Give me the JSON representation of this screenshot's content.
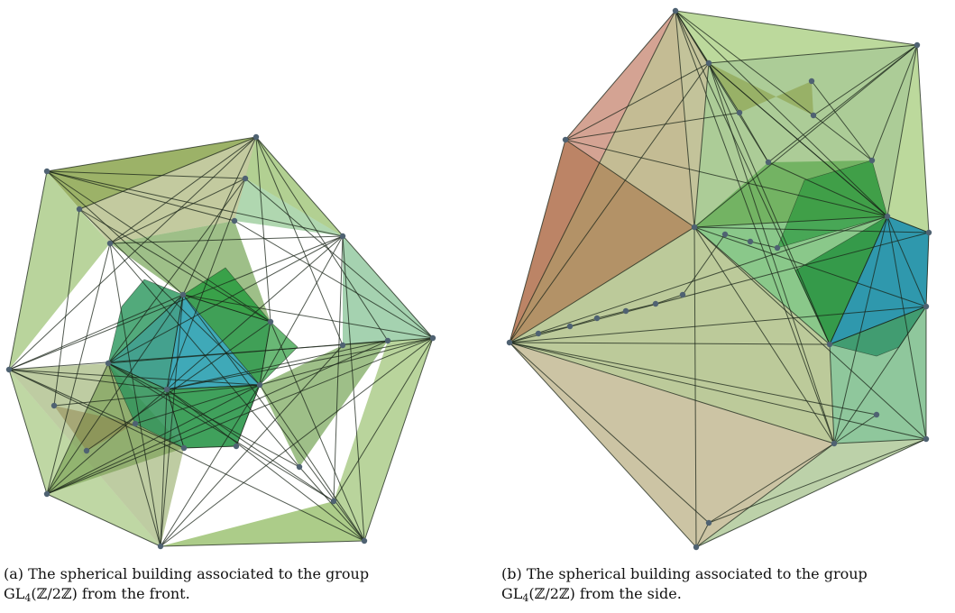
{
  "figures": [
    {
      "id": "a",
      "label": "(a)",
      "caption_line1": "The spherical building associated to the group",
      "group_name": "GL",
      "group_subscript": "4",
      "group_field": "(ℤ/2ℤ)",
      "caption_line2_tail": "from the front.",
      "colors": {
        "outer": "#7fb04a",
        "inner": "#1f8f3a",
        "core": "#2aa0b0",
        "edge": "#1a2418",
        "vertex": "#4f6272"
      }
    },
    {
      "id": "b",
      "label": "(b)",
      "caption_line1": "The spherical building associated to the group",
      "group_name": "GL",
      "group_subscript": "4",
      "group_field": "(ℤ/2ℤ)",
      "caption_line2_tail": "from the side.",
      "colors": {
        "outer": "#8fbf5a",
        "warm": "#b0583a",
        "inner": "#1f8f3a",
        "core": "#1f8fb0",
        "edge": "#1a2418",
        "vertex": "#4f6272"
      }
    }
  ]
}
